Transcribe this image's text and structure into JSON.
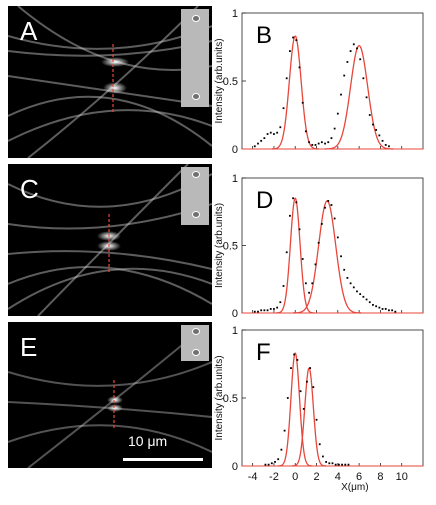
{
  "image_panels": [
    {
      "label": "A"
    },
    {
      "label": "C"
    },
    {
      "label": "E"
    }
  ],
  "scale_bar": {
    "label": "10 μm"
  },
  "chart_data": [
    {
      "type": "line",
      "panel_label": "B",
      "ylabel": "Intensity (arb.units)",
      "xlabel": "",
      "ylim": [
        0,
        1
      ],
      "y_ticks": [
        0,
        0.5,
        1
      ],
      "y_tick_labels": [
        "0",
        "0.5",
        "1"
      ],
      "xlim": [
        -5,
        12
      ],
      "series": [
        {
          "kind": "fit",
          "color": "#e8463a",
          "peaks": [
            {
              "center": 0,
              "amp": 0.83,
              "sigma": 0.55
            },
            {
              "center": 6,
              "amp": 0.76,
              "sigma": 0.8
            }
          ]
        },
        {
          "kind": "points",
          "color": "#000000",
          "x": [
            -3.8,
            -3.5,
            -3.2,
            -2.9,
            -2.6,
            -2.3,
            -2,
            -1.7,
            -1.4,
            -1.1,
            -0.8,
            -0.5,
            -0.2,
            0.1,
            0.4,
            0.7,
            1,
            1.3,
            1.6,
            1.9,
            2.2,
            2.5,
            2.8,
            3.1,
            3.4,
            3.7,
            4,
            4.3,
            4.6,
            4.9,
            5.2,
            5.5,
            5.8,
            6.1,
            6.4,
            6.7,
            7,
            7.3,
            7.6,
            7.9,
            8.2,
            8.5,
            8.8
          ],
          "y": [
            0.02,
            0.04,
            0.06,
            0.08,
            0.11,
            0.12,
            0.11,
            0.12,
            0.16,
            0.3,
            0.52,
            0.72,
            0.82,
            0.8,
            0.6,
            0.34,
            0.13,
            0.05,
            0.03,
            0.03,
            0.04,
            0.05,
            0.04,
            0.05,
            0.08,
            0.15,
            0.26,
            0.4,
            0.54,
            0.64,
            0.72,
            0.77,
            0.74,
            0.66,
            0.52,
            0.38,
            0.25,
            0.18,
            0.14,
            0.1,
            0.06,
            0.03,
            0.02
          ]
        }
      ]
    },
    {
      "type": "line",
      "panel_label": "D",
      "ylabel": "Intensity (arb.units)",
      "xlabel": "",
      "ylim": [
        0,
        1
      ],
      "y_ticks": [
        0,
        0.5,
        1
      ],
      "y_tick_labels": [
        "0",
        "0.5",
        "1"
      ],
      "xlim": [
        -5,
        12
      ],
      "series": [
        {
          "kind": "fit",
          "color": "#e8463a",
          "peaks": [
            {
              "center": 0,
              "amp": 0.85,
              "sigma": 0.45
            },
            {
              "center": 3,
              "amp": 0.83,
              "sigma": 0.8
            }
          ]
        },
        {
          "kind": "points",
          "color": "#000000",
          "x": [
            -3.8,
            -3.5,
            -3.2,
            -2.9,
            -2.6,
            -2.3,
            -2,
            -1.7,
            -1.4,
            -1.1,
            -0.8,
            -0.5,
            -0.2,
            0.1,
            0.4,
            0.7,
            1,
            1.3,
            1.6,
            1.9,
            2.2,
            2.5,
            2.8,
            3.1,
            3.4,
            3.7,
            4,
            4.3,
            4.6,
            4.9,
            5.2,
            5.5,
            5.8,
            6.1,
            6.4,
            6.7,
            7,
            7.3,
            7.6,
            7.9,
            8.2,
            8.5,
            8.8,
            9.1,
            9.4
          ],
          "y": [
            0.01,
            0.01,
            0.02,
            0.02,
            0.02,
            0.03,
            0.03,
            0.04,
            0.08,
            0.2,
            0.45,
            0.72,
            0.85,
            0.82,
            0.62,
            0.4,
            0.22,
            0.15,
            0.22,
            0.36,
            0.52,
            0.66,
            0.78,
            0.83,
            0.8,
            0.7,
            0.56,
            0.42,
            0.32,
            0.26,
            0.22,
            0.19,
            0.16,
            0.14,
            0.12,
            0.1,
            0.08,
            0.06,
            0.05,
            0.04,
            0.03,
            0.03,
            0.02,
            0.02,
            0.01
          ]
        }
      ]
    },
    {
      "type": "line",
      "panel_label": "F",
      "ylabel": "Intensity (arb.units)",
      "xlabel": "X(μm)",
      "ylim": [
        0,
        1
      ],
      "y_ticks": [
        0,
        0.5,
        1
      ],
      "y_tick_labels": [
        "0",
        "0.5",
        "1"
      ],
      "xlim": [
        -5,
        12
      ],
      "x_ticks": [
        -4,
        -2,
        0,
        2,
        4,
        6,
        8,
        10
      ],
      "x_tick_labels": [
        "-4",
        "-2",
        "0",
        "2",
        "4",
        "6",
        "8",
        "10"
      ],
      "series": [
        {
          "kind": "fit",
          "color": "#e8463a",
          "peaks": [
            {
              "center": 0,
              "amp": 0.83,
              "sigma": 0.4
            },
            {
              "center": 1.3,
              "amp": 0.72,
              "sigma": 0.4
            }
          ]
        },
        {
          "kind": "points",
          "color": "#000000",
          "x": [
            -2.8,
            -2.5,
            -2.2,
            -1.9,
            -1.6,
            -1.3,
            -1,
            -0.7,
            -0.4,
            -0.1,
            0.2,
            0.5,
            0.8,
            1.1,
            1.4,
            1.7,
            2,
            2.3,
            2.6,
            2.9,
            3.2,
            3.5,
            3.8,
            4.1,
            4.4,
            4.7,
            5
          ],
          "y": [
            0.01,
            0.01,
            0.02,
            0.03,
            0.05,
            0.12,
            0.26,
            0.5,
            0.72,
            0.82,
            0.78,
            0.55,
            0.42,
            0.62,
            0.72,
            0.58,
            0.34,
            0.16,
            0.07,
            0.03,
            0.02,
            0.02,
            0.01,
            0.01,
            0.01,
            0.01,
            0.01
          ]
        }
      ]
    }
  ]
}
